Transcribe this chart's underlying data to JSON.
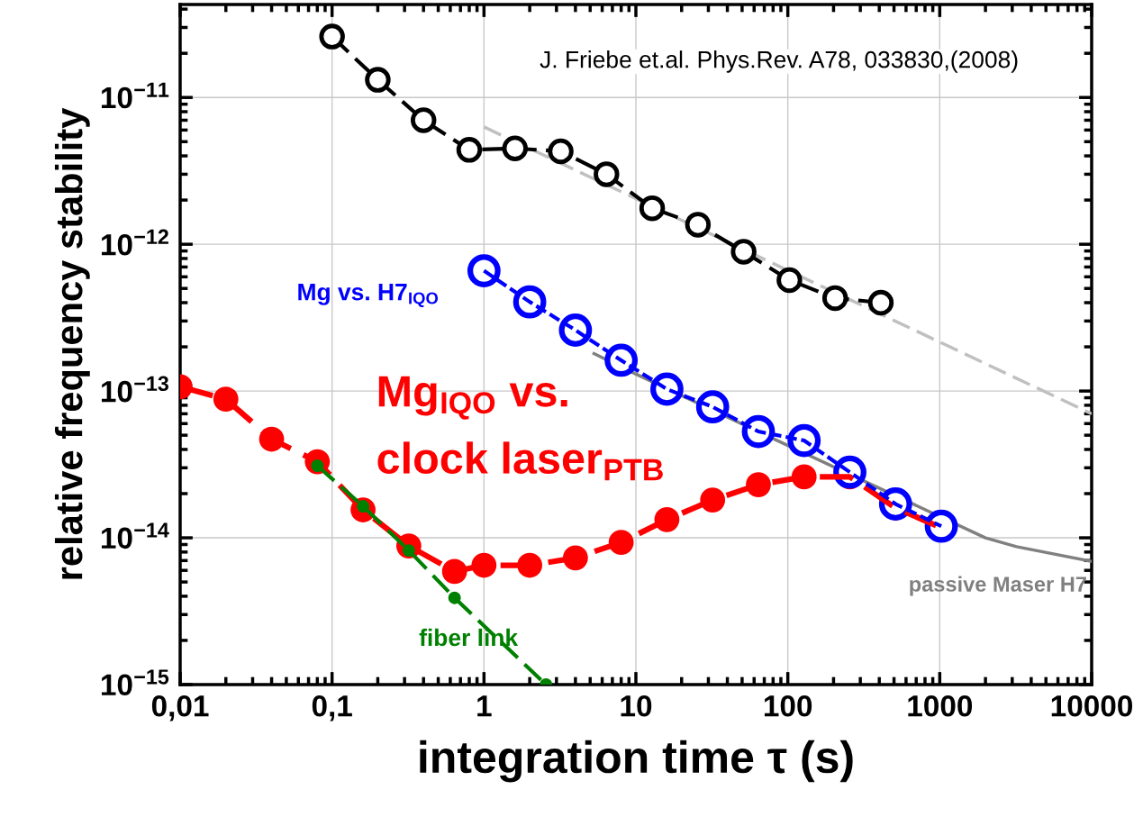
{
  "chart_data": {
    "type": "line",
    "xlabel": "integration time τ (s)",
    "ylabel": "relative frequency stability",
    "annotations": [
      "J. Friebe et.al. Phys.Rev. A78, 033830,(2008)"
    ],
    "log": "xy",
    "grid": true,
    "legend": false,
    "xlim": [
      0.01,
      10000
    ],
    "ylim": [
      1e-15,
      4.3e-11
    ],
    "xticks": [
      {
        "value": 0.01,
        "label": "0,01"
      },
      {
        "value": 0.1,
        "label": "0,1"
      },
      1,
      10,
      100,
      1000,
      10000
    ],
    "yticks": [
      {
        "value": 1e-15,
        "label": "10$^{−15}$"
      },
      {
        "value": 1e-14,
        "label": "10$^{−14}$"
      },
      {
        "value": 1e-13,
        "label": "10$^{−13}$"
      },
      {
        "value": 1e-12,
        "label": "10$^{−12}$"
      },
      {
        "value": 1e-11,
        "label": "10$^{−11}$"
      }
    ],
    "series": [
      {
        "color": "#c0c0c0",
        "line_style": "dashed",
        "marker": "none",
        "x": [
          1,
          10000
        ],
        "values": [
          6.3e-12,
          7e-14
        ]
      },
      {
        "name": "passive Maser H7",
        "color": "#808080",
        "line_style": "solid",
        "marker": "none",
        "x": [
          5.3,
          9.2,
          98,
          2000,
          3200,
          10000
        ],
        "values": [
          1.8e-13,
          1.36e-13,
          4.3e-14,
          1e-14,
          8.7e-15,
          6.9e-15
        ]
      },
      {
        "color": "#000000",
        "line_style": "dashed",
        "marker": "circle",
        "x": [
          0.1,
          0.2,
          0.4,
          0.8,
          1.6,
          3.2,
          6.4,
          12.8,
          25.6,
          51.2,
          102.4,
          204.8,
          409.6
        ],
        "values": [
          2.6e-11,
          1.32e-11,
          7e-12,
          4.4e-12,
          4.5e-12,
          4.3e-12,
          3e-12,
          1.76e-12,
          1.36e-12,
          8.9e-13,
          5.7e-13,
          4.3e-13,
          4e-13
        ]
      },
      {
        "name": "Mg vs. H7$_{IQO}$",
        "color": "#0000ff",
        "line_style": "dotted",
        "marker": "circle",
        "x": [
          1,
          2,
          4,
          8,
          16,
          32,
          64,
          128,
          256,
          512,
          1024
        ],
        "values": [
          6.6e-13,
          4.05e-13,
          2.6e-13,
          1.62e-13,
          1.03e-13,
          7.8e-14,
          5.3e-14,
          4.6e-14,
          2.8e-14,
          1.7e-14,
          1.2e-14
        ]
      },
      {
        "name": "Mg$_{IQO}$ vs.\nclock laser$_{PTB}$",
        "color": "#ff0000",
        "line_style": "dashed",
        "marker": "circle",
        "x": [
          0.01,
          0.02,
          0.04,
          0.08,
          0.16,
          0.32,
          0.64,
          1,
          2,
          4,
          8,
          16,
          32,
          64,
          128,
          256,
          512,
          1024
        ],
        "values": [
          1.07e-13,
          8.8e-14,
          4.7e-14,
          3.3e-14,
          1.55e-14,
          8.8e-15,
          5.9e-15,
          6.5e-15,
          6.5e-15,
          7.3e-15,
          9.3e-15,
          1.33e-14,
          1.81e-14,
          2.3e-14,
          2.6e-14,
          2.6e-14,
          1.6e-14,
          1.17e-14
        ]
      },
      {
        "name": "fiber link",
        "color": "#008000",
        "line_style": "dashed",
        "marker": "circle",
        "x": [
          0.08,
          0.16,
          0.32,
          0.64,
          2.56
        ],
        "values": [
          3.1e-14,
          1.64e-14,
          8.2e-15,
          3.9e-15,
          1e-15
        ]
      }
    ]
  }
}
